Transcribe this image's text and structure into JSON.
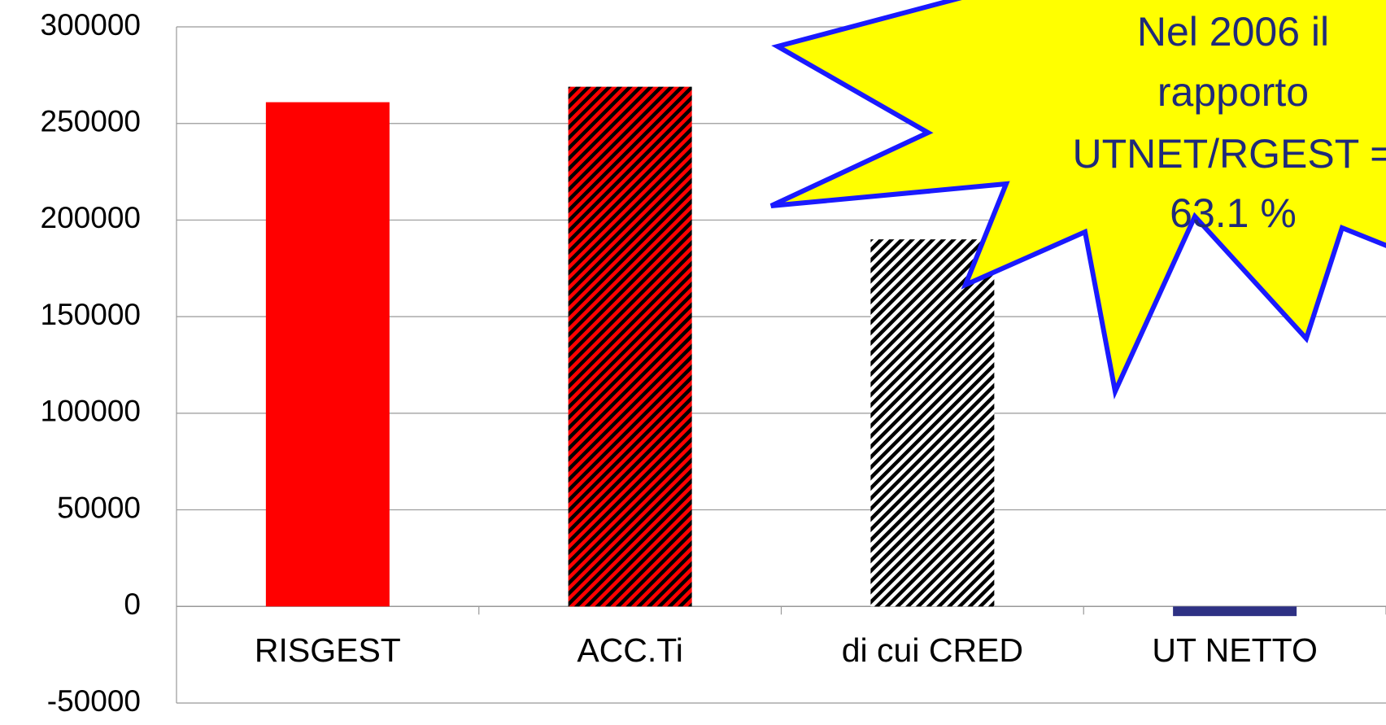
{
  "chart_data": {
    "type": "bar",
    "categories": [
      "RISGEST",
      "ACC.Ti",
      "di cui CRED",
      "UT NETTO"
    ],
    "values": [
      261000,
      269000,
      190000,
      -5000
    ],
    "colors": [
      "#ff0000",
      "#ff0000",
      "#ffffff",
      "#2e3184"
    ],
    "hatched": [
      false,
      true,
      true,
      false
    ],
    "ylim": [
      -50000,
      300000
    ],
    "yticks": [
      -50000,
      0,
      50000,
      100000,
      150000,
      200000,
      250000,
      300000
    ],
    "grid": true,
    "annotation": [
      "Nel 2006 il",
      "rapporto",
      "UTNET/RGEST =",
      "63.1 %"
    ]
  }
}
